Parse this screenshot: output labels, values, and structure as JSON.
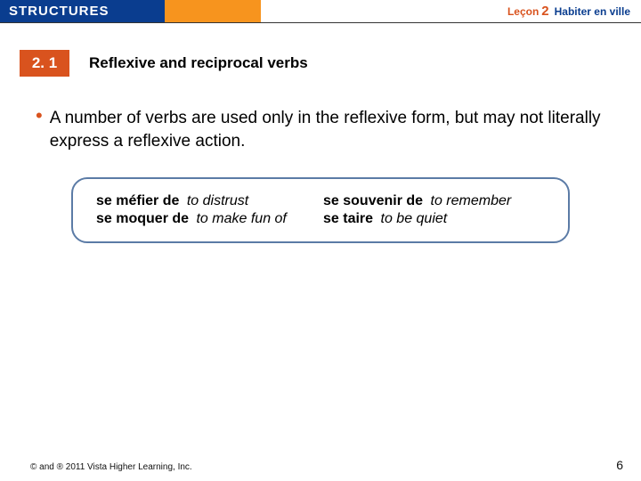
{
  "header": {
    "structures": "STRUCTURES",
    "lecon_label": "Leçon",
    "lecon_num": "2",
    "lecon_title": "Habiter en ville"
  },
  "section": {
    "number": "2. 1",
    "title": "Reflexive and reciprocal verbs"
  },
  "bullet": {
    "text": "A number of verbs are used only in the reflexive form, but may not literally express a reflexive action."
  },
  "verbs": {
    "left": [
      {
        "fr": "se méfier de",
        "en": "to distrust"
      },
      {
        "fr": "se moquer de",
        "en": "to make fun of"
      }
    ],
    "right": [
      {
        "fr": "se souvenir de",
        "en": "to remember"
      },
      {
        "fr": "se taire",
        "en": "to be quiet"
      }
    ]
  },
  "footer": {
    "copyright": "© and ® 2011 Vista Higher Learning, Inc.",
    "page": "6"
  },
  "colors": {
    "blue": "#0a3d8f",
    "orange": "#f7941e",
    "red_orange": "#d9531e",
    "box_border": "#5b7ba6"
  }
}
